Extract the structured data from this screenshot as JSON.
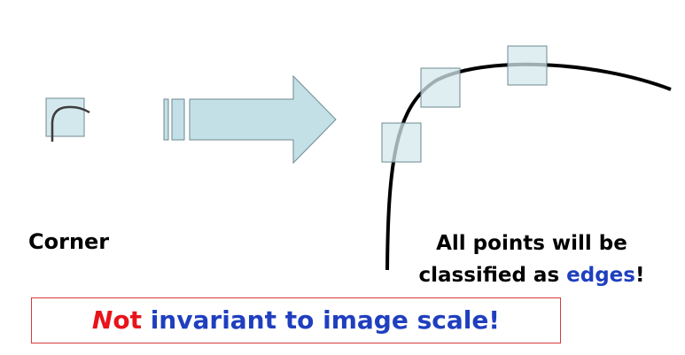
{
  "labels": {
    "corner": "Corner",
    "caption_line1": "All points will be",
    "caption_line2_prefix": "classified as ",
    "caption_line2_highlight": "edges",
    "caption_line2_suffix": "!"
  },
  "note": {
    "not_n": "N",
    "not_rest": "ot",
    "rest": " invariant to image scale!"
  },
  "colors": {
    "window_fill": "#d3e8ec",
    "window_stroke": "#6f8a92",
    "arrow_fill": "#c2e0e6",
    "accent_blue": "#1f3fbf",
    "accent_red": "#e8141b",
    "note_border": "#d83a3a"
  }
}
